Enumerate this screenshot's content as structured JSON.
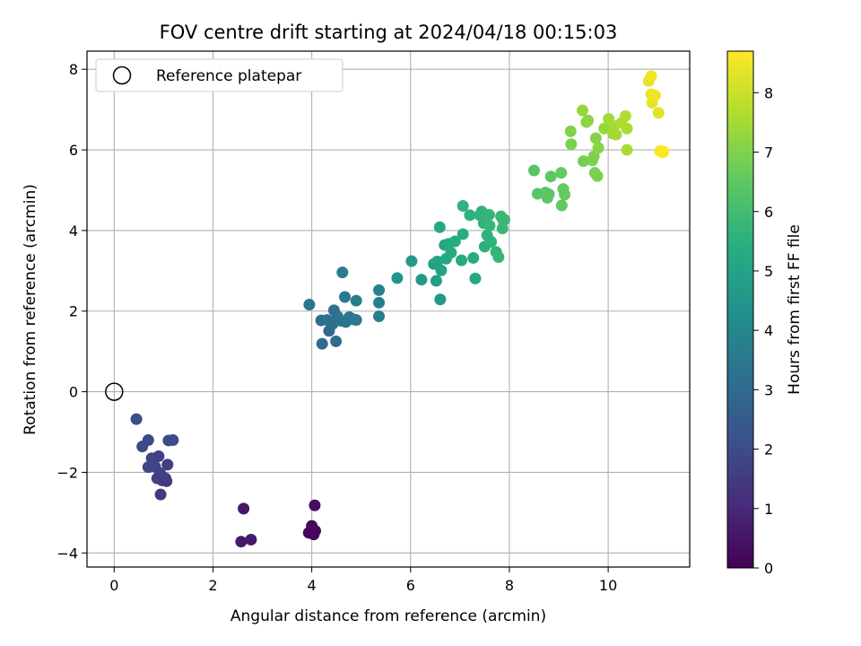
{
  "chart_data": {
    "type": "scatter",
    "title": "FOV centre drift starting at 2024/04/18 00:15:03",
    "xlabel": "Angular distance from reference (arcmin)",
    "ylabel": "Rotation from reference (arcmin)",
    "xlim": [
      -0.55,
      11.65
    ],
    "ylim": [
      -4.35,
      8.45
    ],
    "xticks": [
      0,
      2,
      4,
      6,
      8,
      10
    ],
    "yticks": [
      -4,
      -2,
      0,
      2,
      4,
      6,
      8
    ],
    "grid": true,
    "legend": {
      "position": "top-left",
      "entries": [
        "Reference platepar"
      ]
    },
    "reference_point": {
      "x": 0,
      "y": 0,
      "label": "Reference platepar"
    },
    "colorbar": {
      "label": "Hours from first FF file",
      "colormap": "viridis",
      "range": [
        0,
        8.7
      ],
      "ticks": [
        0,
        1,
        2,
        3,
        4,
        5,
        6,
        7,
        8
      ]
    },
    "points": [
      {
        "x": 2.62,
        "y": -2.9,
        "hours": 0.58
      },
      {
        "x": 2.57,
        "y": -3.72,
        "hours": 0.6
      },
      {
        "x": 2.77,
        "y": -3.67,
        "hours": 0.62
      },
      {
        "x": 4.06,
        "y": -2.82,
        "hours": 0.3
      },
      {
        "x": 3.94,
        "y": -3.5,
        "hours": 0.1
      },
      {
        "x": 4.0,
        "y": -3.33,
        "hours": 0.2
      },
      {
        "x": 4.07,
        "y": -3.45,
        "hours": 0.25
      },
      {
        "x": 4.04,
        "y": -3.54,
        "hours": 0.05
      },
      {
        "x": 3.97,
        "y": -3.48,
        "hours": 0.15
      },
      {
        "x": 0.45,
        "y": -0.68,
        "hours": 2.05
      },
      {
        "x": 0.57,
        "y": -1.36,
        "hours": 1.95
      },
      {
        "x": 0.69,
        "y": -1.2,
        "hours": 1.9
      },
      {
        "x": 0.69,
        "y": -1.87,
        "hours": 1.85
      },
      {
        "x": 0.76,
        "y": -1.65,
        "hours": 1.8
      },
      {
        "x": 0.83,
        "y": -1.86,
        "hours": 1.75
      },
      {
        "x": 0.9,
        "y": -1.6,
        "hours": 1.7
      },
      {
        "x": 0.87,
        "y": -2.15,
        "hours": 1.65
      },
      {
        "x": 0.93,
        "y": -2.02,
        "hours": 1.6
      },
      {
        "x": 0.97,
        "y": -2.2,
        "hours": 1.55
      },
      {
        "x": 1.04,
        "y": -2.15,
        "hours": 1.5
      },
      {
        "x": 1.06,
        "y": -2.22,
        "hours": 1.45
      },
      {
        "x": 1.08,
        "y": -1.81,
        "hours": 1.6
      },
      {
        "x": 1.1,
        "y": -1.21,
        "hours": 1.95
      },
      {
        "x": 1.19,
        "y": -1.2,
        "hours": 2.0
      },
      {
        "x": 0.94,
        "y": -2.55,
        "hours": 1.4
      },
      {
        "x": 0.97,
        "y": -2.1,
        "hours": 1.6
      },
      {
        "x": 3.95,
        "y": 2.16,
        "hours": 3.3
      },
      {
        "x": 4.19,
        "y": 1.77,
        "hours": 3.1
      },
      {
        "x": 4.21,
        "y": 1.19,
        "hours": 3.05
      },
      {
        "x": 4.31,
        "y": 1.78,
        "hours": 3.15
      },
      {
        "x": 4.35,
        "y": 1.51,
        "hours": 3.0
      },
      {
        "x": 4.42,
        "y": 1.68,
        "hours": 3.2
      },
      {
        "x": 4.45,
        "y": 2.02,
        "hours": 3.25
      },
      {
        "x": 4.49,
        "y": 1.25,
        "hours": 3.1
      },
      {
        "x": 4.52,
        "y": 1.87,
        "hours": 3.3
      },
      {
        "x": 4.59,
        "y": 1.76,
        "hours": 3.35
      },
      {
        "x": 4.62,
        "y": 2.96,
        "hours": 3.6
      },
      {
        "x": 4.67,
        "y": 2.35,
        "hours": 3.45
      },
      {
        "x": 4.69,
        "y": 1.73,
        "hours": 3.4
      },
      {
        "x": 4.76,
        "y": 1.85,
        "hours": 3.45
      },
      {
        "x": 4.86,
        "y": 1.79,
        "hours": 3.5
      },
      {
        "x": 4.9,
        "y": 2.26,
        "hours": 3.55
      },
      {
        "x": 4.9,
        "y": 1.78,
        "hours": 3.5
      },
      {
        "x": 5.36,
        "y": 2.52,
        "hours": 3.8
      },
      {
        "x": 5.36,
        "y": 2.21,
        "hours": 3.75
      },
      {
        "x": 5.36,
        "y": 1.87,
        "hours": 3.7
      },
      {
        "x": 5.73,
        "y": 2.82,
        "hours": 4.5
      },
      {
        "x": 6.02,
        "y": 3.24,
        "hours": 4.7
      },
      {
        "x": 6.22,
        "y": 2.78,
        "hours": 4.6
      },
      {
        "x": 6.47,
        "y": 3.17,
        "hours": 4.9
      },
      {
        "x": 6.52,
        "y": 2.75,
        "hours": 4.8
      },
      {
        "x": 6.54,
        "y": 3.23,
        "hours": 5.0
      },
      {
        "x": 6.59,
        "y": 4.08,
        "hours": 5.2
      },
      {
        "x": 6.6,
        "y": 2.29,
        "hours": 4.7
      },
      {
        "x": 6.62,
        "y": 3.01,
        "hours": 5.0
      },
      {
        "x": 6.69,
        "y": 3.64,
        "hours": 5.1
      },
      {
        "x": 6.72,
        "y": 3.3,
        "hours": 5.2
      },
      {
        "x": 6.77,
        "y": 3.67,
        "hours": 5.25
      },
      {
        "x": 6.82,
        "y": 3.45,
        "hours": 5.3
      },
      {
        "x": 6.9,
        "y": 3.73,
        "hours": 5.35
      },
      {
        "x": 7.03,
        "y": 3.26,
        "hours": 5.3
      },
      {
        "x": 7.06,
        "y": 3.91,
        "hours": 5.4
      },
      {
        "x": 7.06,
        "y": 4.61,
        "hours": 5.6
      },
      {
        "x": 7.2,
        "y": 4.38,
        "hours": 5.55
      },
      {
        "x": 7.27,
        "y": 3.32,
        "hours": 5.35
      },
      {
        "x": 7.31,
        "y": 2.81,
        "hours": 5.2
      },
      {
        "x": 7.4,
        "y": 4.38,
        "hours": 5.6
      },
      {
        "x": 7.44,
        "y": 4.47,
        "hours": 5.65
      },
      {
        "x": 7.48,
        "y": 4.18,
        "hours": 5.6
      },
      {
        "x": 7.5,
        "y": 3.6,
        "hours": 5.5
      },
      {
        "x": 7.52,
        "y": 4.31,
        "hours": 5.65
      },
      {
        "x": 7.55,
        "y": 3.88,
        "hours": 5.55
      },
      {
        "x": 7.59,
        "y": 4.39,
        "hours": 5.7
      },
      {
        "x": 7.6,
        "y": 4.12,
        "hours": 5.7
      },
      {
        "x": 7.63,
        "y": 3.72,
        "hours": 5.6
      },
      {
        "x": 7.73,
        "y": 3.47,
        "hours": 5.65
      },
      {
        "x": 7.78,
        "y": 3.34,
        "hours": 5.7
      },
      {
        "x": 7.83,
        "y": 4.35,
        "hours": 5.8
      },
      {
        "x": 7.86,
        "y": 4.05,
        "hours": 5.8
      },
      {
        "x": 7.88,
        "y": 4.24,
        "hours": 5.85
      },
      {
        "x": 7.9,
        "y": 4.27,
        "hours": 5.85
      },
      {
        "x": 8.5,
        "y": 5.49,
        "hours": 6.4
      },
      {
        "x": 8.57,
        "y": 4.91,
        "hours": 6.4
      },
      {
        "x": 8.73,
        "y": 4.94,
        "hours": 6.45
      },
      {
        "x": 8.77,
        "y": 4.81,
        "hours": 6.5
      },
      {
        "x": 8.8,
        "y": 4.9,
        "hours": 6.5
      },
      {
        "x": 8.84,
        "y": 5.34,
        "hours": 6.5
      },
      {
        "x": 9.05,
        "y": 5.43,
        "hours": 6.6
      },
      {
        "x": 9.06,
        "y": 4.62,
        "hours": 6.55
      },
      {
        "x": 9.09,
        "y": 5.03,
        "hours": 6.6
      },
      {
        "x": 9.12,
        "y": 4.89,
        "hours": 6.6
      },
      {
        "x": 9.24,
        "y": 6.46,
        "hours": 7.0
      },
      {
        "x": 9.25,
        "y": 6.14,
        "hours": 6.9
      },
      {
        "x": 9.48,
        "y": 6.98,
        "hours": 7.3
      },
      {
        "x": 9.5,
        "y": 5.72,
        "hours": 6.85
      },
      {
        "x": 9.56,
        "y": 6.69,
        "hours": 7.1
      },
      {
        "x": 9.59,
        "y": 6.73,
        "hours": 7.15
      },
      {
        "x": 9.68,
        "y": 5.74,
        "hours": 6.9
      },
      {
        "x": 9.71,
        "y": 5.84,
        "hours": 6.95
      },
      {
        "x": 9.73,
        "y": 5.43,
        "hours": 6.9
      },
      {
        "x": 9.75,
        "y": 6.29,
        "hours": 7.05
      },
      {
        "x": 9.78,
        "y": 5.35,
        "hours": 6.95
      },
      {
        "x": 9.8,
        "y": 6.05,
        "hours": 7.1
      },
      {
        "x": 9.92,
        "y": 6.53,
        "hours": 7.3
      },
      {
        "x": 10.01,
        "y": 6.77,
        "hours": 7.5
      },
      {
        "x": 10.1,
        "y": 6.4,
        "hours": 7.45
      },
      {
        "x": 10.12,
        "y": 6.59,
        "hours": 7.5
      },
      {
        "x": 10.16,
        "y": 6.38,
        "hours": 7.5
      },
      {
        "x": 10.27,
        "y": 6.67,
        "hours": 7.6
      },
      {
        "x": 10.35,
        "y": 6.84,
        "hours": 7.65
      },
      {
        "x": 10.38,
        "y": 6.53,
        "hours": 7.6
      },
      {
        "x": 10.38,
        "y": 6.0,
        "hours": 7.55
      },
      {
        "x": 10.82,
        "y": 7.71,
        "hours": 8.4
      },
      {
        "x": 10.87,
        "y": 7.83,
        "hours": 8.5
      },
      {
        "x": 10.87,
        "y": 7.38,
        "hours": 8.45
      },
      {
        "x": 10.89,
        "y": 7.17,
        "hours": 8.4
      },
      {
        "x": 10.95,
        "y": 7.35,
        "hours": 8.5
      },
      {
        "x": 11.02,
        "y": 6.92,
        "hours": 8.3
      },
      {
        "x": 11.05,
        "y": 5.97,
        "hours": 8.6
      },
      {
        "x": 11.1,
        "y": 5.94,
        "hours": 8.65
      },
      {
        "x": 11.12,
        "y": 5.96,
        "hours": 8.7
      }
    ]
  }
}
